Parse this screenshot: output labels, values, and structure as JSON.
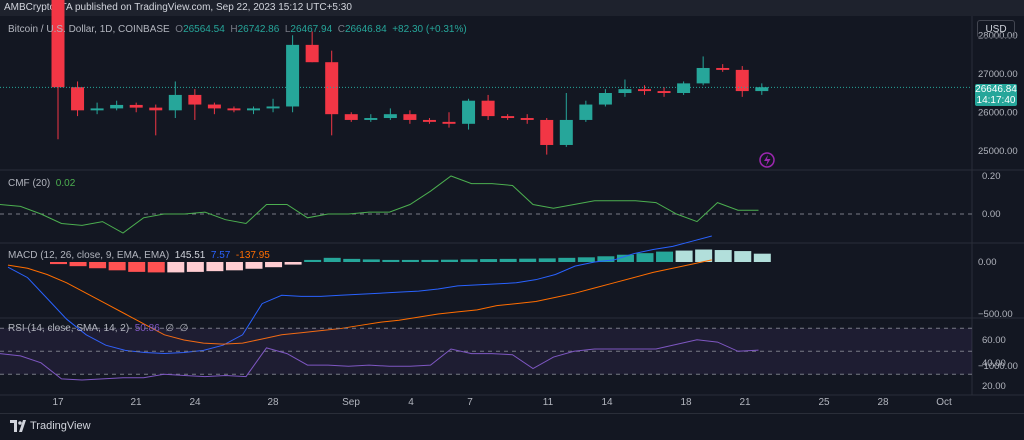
{
  "topbar": {
    "published": "AMBCrypto_TA published on TradingView.com, Sep 22, 2023 15:12 UTC+5:30"
  },
  "symbol": {
    "name": "Bitcoin / U.S. Dollar, 1D, COINBASE",
    "o_label": "O",
    "o": "26564.54",
    "h_label": "H",
    "h": "26742.86",
    "l_label": "L",
    "l": "26467.94",
    "c_label": "C",
    "c": "26646.84",
    "change": "+82.30 (+0.31%)"
  },
  "currency": "USD",
  "last_price": {
    "value": "26646.84",
    "countdown": "14:17:40"
  },
  "indicators": {
    "cmf": {
      "label": "CMF (20)",
      "value": "0.02",
      "color": "#4caf50"
    },
    "macd": {
      "label": "MACD (12, 26, close, 9, EMA, EMA)",
      "v1": "145.51",
      "v2": "7.57",
      "v3": "-137.95",
      "c1": "#26a69a",
      "c2": "#2962ff",
      "c3": "#ff6d00"
    },
    "rsi": {
      "label": "RSI (14, close, SMA, 14, 2)",
      "value": "50.86",
      "extra1": "∅",
      "extra2": "∅",
      "color": "#7e57c2"
    }
  },
  "price_scale": [
    "28000.00",
    "27000.00",
    "26000.00",
    "25000.00"
  ],
  "cmf_scale": [
    "0.20",
    "0.00"
  ],
  "macd_scale": [
    "0.00",
    "−500.00",
    "−1000.00"
  ],
  "rsi_scale": [
    "60.00",
    "40.00",
    "20.00"
  ],
  "date_labels": [
    "17",
    "21",
    "24",
    "28",
    "Sep",
    "4",
    "7",
    "11",
    "14",
    "18",
    "21",
    "25",
    "28",
    "Oct"
  ],
  "brand": "TradingView",
  "colors": {
    "up": "#26a69a",
    "down": "#f23645",
    "bg": "#131722"
  },
  "chart_data": {
    "type": "candlestick",
    "title": "Bitcoin / U.S. Dollar, 1D, COINBASE",
    "ylim": [
      24500,
      28500
    ],
    "candles": [
      {
        "o": 29350,
        "h": 29400,
        "l": 25300,
        "c": 26650
      },
      {
        "o": 26650,
        "h": 26800,
        "l": 25900,
        "c": 26050
      },
      {
        "o": 26050,
        "h": 26250,
        "l": 25950,
        "c": 26100
      },
      {
        "o": 26100,
        "h": 26300,
        "l": 26050,
        "c": 26190
      },
      {
        "o": 26190,
        "h": 26250,
        "l": 26000,
        "c": 26120
      },
      {
        "o": 26120,
        "h": 26200,
        "l": 25400,
        "c": 26050
      },
      {
        "o": 26050,
        "h": 26800,
        "l": 25850,
        "c": 26450
      },
      {
        "o": 26450,
        "h": 26600,
        "l": 25800,
        "c": 26200
      },
      {
        "o": 26200,
        "h": 26250,
        "l": 25950,
        "c": 26100
      },
      {
        "o": 26100,
        "h": 26150,
        "l": 26000,
        "c": 26050
      },
      {
        "o": 26050,
        "h": 26150,
        "l": 25950,
        "c": 26100
      },
      {
        "o": 26100,
        "h": 26350,
        "l": 26000,
        "c": 26150
      },
      {
        "o": 26150,
        "h": 28000,
        "l": 26000,
        "c": 27750
      },
      {
        "o": 27750,
        "h": 28100,
        "l": 27300,
        "c": 27300
      },
      {
        "o": 27300,
        "h": 27600,
        "l": 25400,
        "c": 25950
      },
      {
        "o": 25950,
        "h": 26000,
        "l": 25750,
        "c": 25800
      },
      {
        "o": 25800,
        "h": 25950,
        "l": 25750,
        "c": 25850
      },
      {
        "o": 25850,
        "h": 26100,
        "l": 25800,
        "c": 25950
      },
      {
        "o": 25950,
        "h": 26050,
        "l": 25700,
        "c": 25800
      },
      {
        "o": 25800,
        "h": 25850,
        "l": 25700,
        "c": 25750
      },
      {
        "o": 25750,
        "h": 26000,
        "l": 25600,
        "c": 25700
      },
      {
        "o": 25700,
        "h": 26350,
        "l": 25550,
        "c": 26300
      },
      {
        "o": 26300,
        "h": 26450,
        "l": 25800,
        "c": 25900
      },
      {
        "o": 25900,
        "h": 25950,
        "l": 25800,
        "c": 25850
      },
      {
        "o": 25850,
        "h": 25950,
        "l": 25700,
        "c": 25800
      },
      {
        "o": 25800,
        "h": 25850,
        "l": 24900,
        "c": 25150
      },
      {
        "o": 25150,
        "h": 26500,
        "l": 25100,
        "c": 25800
      },
      {
        "o": 25800,
        "h": 26300,
        "l": 25750,
        "c": 26200
      },
      {
        "o": 26200,
        "h": 26600,
        "l": 26150,
        "c": 26500
      },
      {
        "o": 26500,
        "h": 26850,
        "l": 26400,
        "c": 26600
      },
      {
        "o": 26600,
        "h": 26700,
        "l": 26450,
        "c": 26550
      },
      {
        "o": 26550,
        "h": 26650,
        "l": 26400,
        "c": 26500
      },
      {
        "o": 26500,
        "h": 26800,
        "l": 26450,
        "c": 26750
      },
      {
        "o": 26750,
        "h": 27450,
        "l": 26700,
        "c": 27150
      },
      {
        "o": 27150,
        "h": 27250,
        "l": 27050,
        "c": 27100
      },
      {
        "o": 27100,
        "h": 27200,
        "l": 26400,
        "c": 26550
      },
      {
        "o": 26550,
        "h": 26750,
        "l": 26450,
        "c": 26650
      }
    ]
  }
}
